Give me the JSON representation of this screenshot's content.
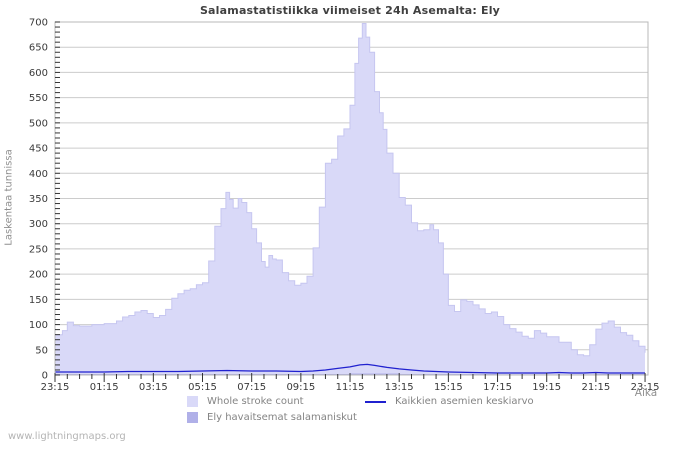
{
  "chart": {
    "title": "Salamastatistiikka viimeiset 24h Asemalta: Ely",
    "ylabel": "Laskentaa tunnissa",
    "xlabel": "Aika"
  },
  "legend": {
    "whole_stroke": "Whole stroke count",
    "ely": "Ely havaitsemat salamaniskut",
    "average": "Kaikkien asemien keskiarvo"
  },
  "footer": {
    "watermark": "www.lightningmaps.org"
  },
  "colors": {
    "area_fill": "#d9d9f8",
    "area_edge": "#c6c6f0",
    "ely_fill": "#b0b0e8",
    "avg_line": "#2021cf",
    "grid": "#cccccc",
    "border": "#b8b8b8",
    "tick": "#333333",
    "tick_label": "#3a3a3a"
  },
  "chart_data": {
    "type": "area",
    "title": "Salamastatistiikka viimeiset 24h Asemalta: Ely",
    "xlabel": "Aika",
    "ylabel": "Laskentaa tunnissa",
    "ylim": [
      0,
      700
    ],
    "xlim_hours": [
      0,
      24.12
    ],
    "grid": "horizontal",
    "legend_position": "bottom",
    "yticks": [
      0,
      50,
      100,
      150,
      200,
      250,
      300,
      350,
      400,
      450,
      500,
      550,
      600,
      650,
      700
    ],
    "xticks": [
      "23:15",
      "01:15",
      "03:15",
      "05:15",
      "07:15",
      "09:15",
      "11:15",
      "13:15",
      "15:15",
      "17:15",
      "19:15",
      "21:15",
      "23:15"
    ],
    "xtick_interval_hours": 2,
    "minor_xtick_hours": 0.5,
    "minor_ytick": 10,
    "series": [
      {
        "name": "Whole stroke count",
        "type": "area-step",
        "points": [
          [
            0,
            80
          ],
          [
            0.3,
            88
          ],
          [
            0.5,
            105
          ],
          [
            0.75,
            98
          ],
          [
            1,
            97
          ],
          [
            1.5,
            100
          ],
          [
            2,
            102
          ],
          [
            2.5,
            107
          ],
          [
            2.75,
            115
          ],
          [
            3,
            118
          ],
          [
            3.25,
            125
          ],
          [
            3.5,
            128
          ],
          [
            3.75,
            122
          ],
          [
            4,
            114
          ],
          [
            4.25,
            118
          ],
          [
            4.5,
            130
          ],
          [
            4.75,
            152
          ],
          [
            5,
            161
          ],
          [
            5.25,
            168
          ],
          [
            5.5,
            171
          ],
          [
            5.75,
            179
          ],
          [
            6,
            183
          ],
          [
            6.25,
            226
          ],
          [
            6.5,
            295
          ],
          [
            6.75,
            330
          ],
          [
            6.95,
            362
          ],
          [
            7.1,
            348
          ],
          [
            7.25,
            331
          ],
          [
            7.45,
            350
          ],
          [
            7.6,
            342
          ],
          [
            7.8,
            322
          ],
          [
            8,
            290
          ],
          [
            8.2,
            262
          ],
          [
            8.4,
            225
          ],
          [
            8.55,
            214
          ],
          [
            8.7,
            237
          ],
          [
            8.85,
            230
          ],
          [
            9,
            228
          ],
          [
            9.25,
            203
          ],
          [
            9.5,
            187
          ],
          [
            9.75,
            178
          ],
          [
            10,
            182
          ],
          [
            10.25,
            196
          ],
          [
            10.5,
            252
          ],
          [
            10.75,
            333
          ],
          [
            11,
            420
          ],
          [
            11.25,
            428
          ],
          [
            11.5,
            474
          ],
          [
            11.75,
            488
          ],
          [
            12,
            535
          ],
          [
            12.2,
            618
          ],
          [
            12.35,
            668
          ],
          [
            12.5,
            697
          ],
          [
            12.65,
            670
          ],
          [
            12.8,
            640
          ],
          [
            13,
            562
          ],
          [
            13.2,
            520
          ],
          [
            13.35,
            487
          ],
          [
            13.5,
            440
          ],
          [
            13.75,
            400
          ],
          [
            14,
            352
          ],
          [
            14.25,
            337
          ],
          [
            14.5,
            302
          ],
          [
            14.75,
            286
          ],
          [
            15,
            288
          ],
          [
            15.25,
            298
          ],
          [
            15.4,
            288
          ],
          [
            15.6,
            262
          ],
          [
            15.8,
            200
          ],
          [
            16,
            138
          ],
          [
            16.25,
            126
          ],
          [
            16.5,
            149
          ],
          [
            16.75,
            146
          ],
          [
            17,
            139
          ],
          [
            17.25,
            131
          ],
          [
            17.5,
            122
          ],
          [
            17.75,
            125
          ],
          [
            18,
            116
          ],
          [
            18.25,
            100
          ],
          [
            18.5,
            92
          ],
          [
            18.75,
            85
          ],
          [
            19,
            77
          ],
          [
            19.25,
            73
          ],
          [
            19.5,
            88
          ],
          [
            19.75,
            83
          ],
          [
            20,
            76
          ],
          [
            20.5,
            65
          ],
          [
            21,
            50
          ],
          [
            21.25,
            40
          ],
          [
            21.5,
            38
          ],
          [
            21.75,
            60
          ],
          [
            22,
            91
          ],
          [
            22.25,
            103
          ],
          [
            22.5,
            107
          ],
          [
            22.75,
            95
          ],
          [
            23,
            84
          ],
          [
            23.25,
            79
          ],
          [
            23.5,
            68
          ],
          [
            23.75,
            57
          ],
          [
            24,
            44
          ]
        ]
      },
      {
        "name": "Ely havaitsemat salamaniskut",
        "type": "area-step",
        "points": [
          [
            0,
            2
          ],
          [
            2,
            2
          ],
          [
            4,
            2
          ],
          [
            6,
            2
          ],
          [
            8,
            2
          ],
          [
            10,
            2
          ],
          [
            11,
            2
          ],
          [
            12,
            3
          ],
          [
            13,
            3
          ],
          [
            14,
            2
          ],
          [
            16,
            2
          ],
          [
            18,
            1
          ],
          [
            20,
            1
          ],
          [
            22,
            2
          ],
          [
            24,
            1
          ]
        ]
      },
      {
        "name": "Kaikkien asemien keskiarvo",
        "type": "line",
        "points": [
          [
            0,
            6
          ],
          [
            1,
            6
          ],
          [
            2,
            6
          ],
          [
            3,
            7
          ],
          [
            4,
            7
          ],
          [
            5,
            7
          ],
          [
            6,
            8
          ],
          [
            7,
            9
          ],
          [
            8,
            8
          ],
          [
            9,
            8
          ],
          [
            10,
            7
          ],
          [
            10.5,
            8
          ],
          [
            11,
            10
          ],
          [
            11.5,
            13
          ],
          [
            12,
            16
          ],
          [
            12.4,
            20
          ],
          [
            12.7,
            21
          ],
          [
            13,
            19
          ],
          [
            13.5,
            15
          ],
          [
            14,
            12
          ],
          [
            14.5,
            10
          ],
          [
            15,
            8
          ],
          [
            15.5,
            7
          ],
          [
            16,
            6
          ],
          [
            17,
            5
          ],
          [
            18,
            4
          ],
          [
            19,
            4
          ],
          [
            20,
            4
          ],
          [
            20.5,
            5
          ],
          [
            21,
            4
          ],
          [
            21.5,
            4
          ],
          [
            22,
            5
          ],
          [
            22.5,
            4
          ],
          [
            23,
            4
          ],
          [
            24,
            4
          ]
        ]
      }
    ]
  }
}
